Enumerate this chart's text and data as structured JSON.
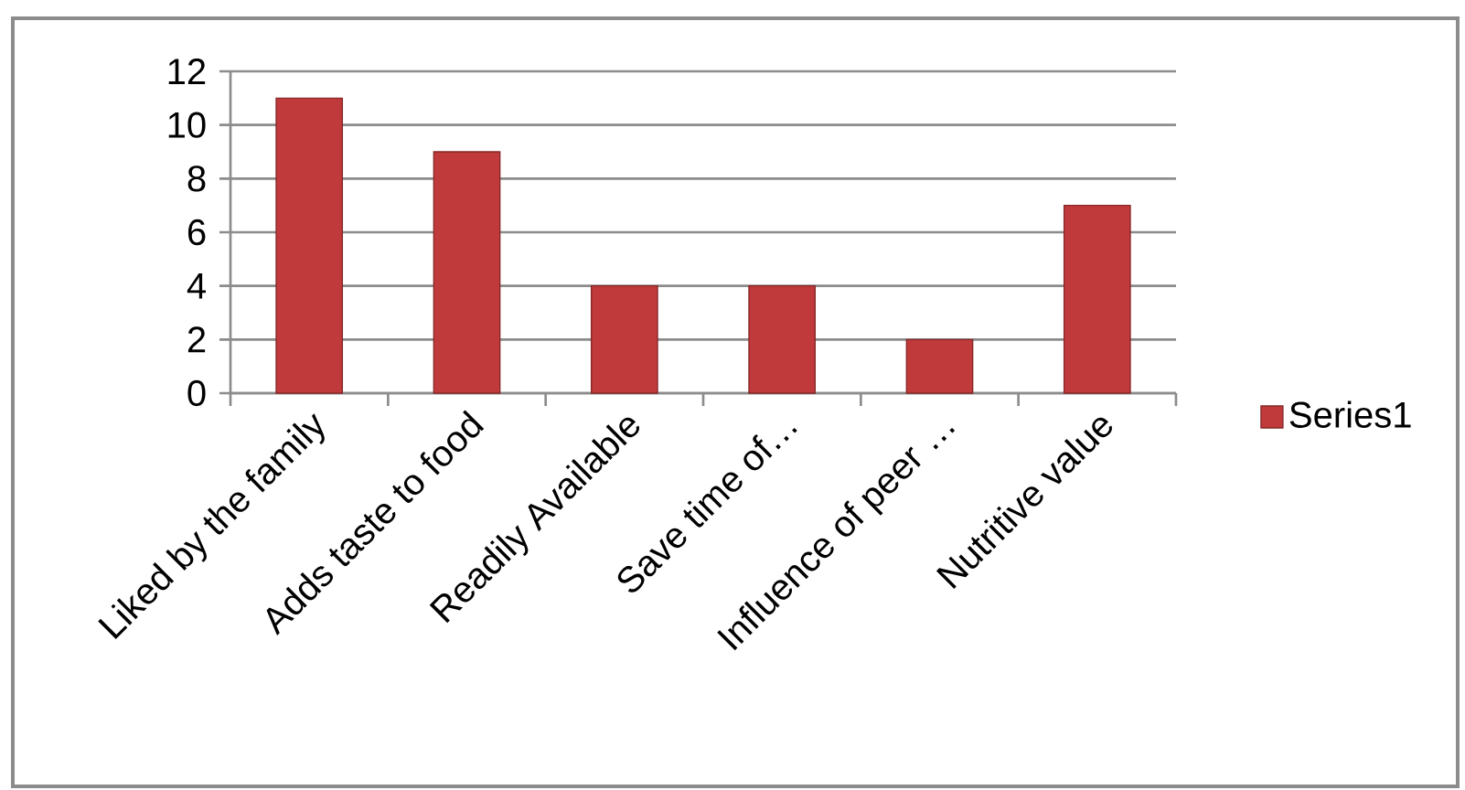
{
  "chart_data": {
    "type": "bar",
    "categories": [
      "Liked by the family",
      "Adds taste to food",
      "Readily Available",
      "Save time of…",
      "Influence of peer …",
      "Nutritive value"
    ],
    "series": [
      {
        "name": "Series1",
        "color": "#c0393b",
        "values": [
          11,
          9,
          4,
          4,
          2,
          7
        ]
      }
    ],
    "ylim": [
      0,
      12
    ],
    "yticks": [
      0,
      2,
      4,
      6,
      8,
      10,
      12
    ],
    "grid": "y",
    "legend": "right"
  }
}
